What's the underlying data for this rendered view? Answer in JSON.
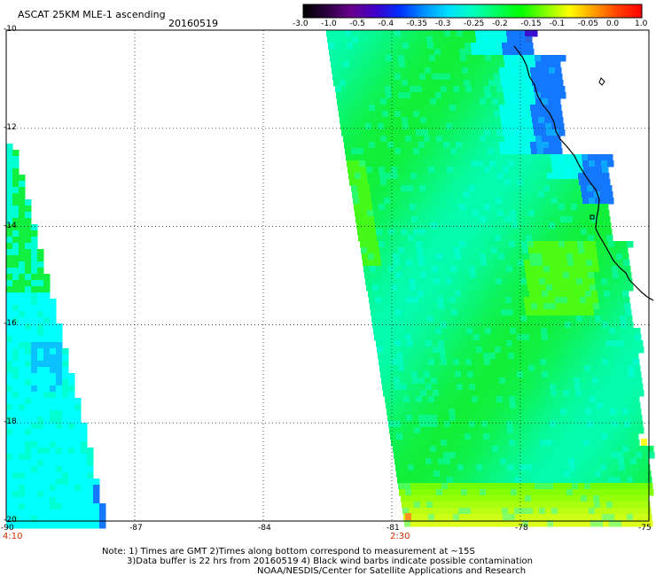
{
  "header": {
    "title": "ASCAT 25KM MLE-1 ascending",
    "date": "20160519"
  },
  "colorbar": {
    "labels": [
      "-3.0",
      "-1.0",
      "-0.5",
      "-0.4",
      "-0.35",
      "-0.3",
      "-0.25",
      "-0.2",
      "-0.15",
      "-0.1",
      "-0.05",
      "0.0",
      "1.0"
    ],
    "colors": [
      "#000000",
      "#2b0040",
      "#6a0090",
      "#4000c8",
      "#0030ff",
      "#0090ff",
      "#00e0ff",
      "#00ffc0",
      "#00ff60",
      "#00ff00",
      "#80ff00",
      "#ffff00",
      "#ffa000",
      "#ff4000",
      "#ff0000"
    ]
  },
  "map": {
    "lat_labels": [
      "-10",
      "-12",
      "-14",
      "-16",
      "-18",
      "-20"
    ],
    "lon_labels": [
      "-90",
      "-87",
      "-84",
      "-81",
      "-78",
      "-75"
    ],
    "lat_range": [
      -20,
      -10
    ],
    "lon_range": [
      -90,
      -75
    ],
    "gridlines": "dotted",
    "swath_time_labels": [
      "4:10",
      "2:30"
    ],
    "time_label_color": "#d03000",
    "value_colors": {
      "blue": "#1478ff",
      "cyan": "#00ffff",
      "aqua": "#00ffd2",
      "green": "#10f040",
      "lime": "#66ff00",
      "yellow": "#ffff20",
      "orange": "#ff9020",
      "violet": "#3a10d0"
    }
  },
  "notes": [
    "Note: 1) Times are GMT 2)Times along bottom correspond to measurement at ~15S",
    "3)Data buffer is 22 hrs from 20160519 4) Black wind barbs indicate possible contamination",
    "NOAA/NESDIS/Center for Satellite Applications and Research"
  ]
}
